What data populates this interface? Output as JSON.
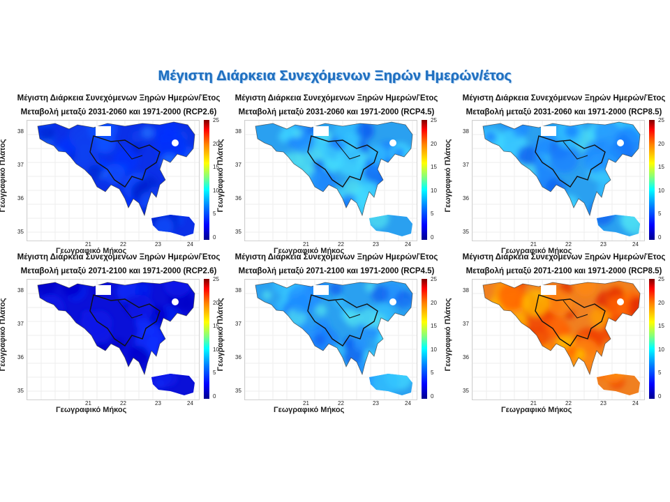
{
  "slide_title": "Μέγιστη Διάρκεια Συνεχόμενων Ξηρών Ημερών/έτος",
  "panel_title_line1": "Μέγιστη Διάρκεια Συνεχόμενων Ξηρών Ημερών/Έτος",
  "x_axis_label": "Γεωγραφικό Μήκος",
  "y_axis_label": "Γεωγραφικό Πλάτος",
  "x_ticks": [
    "21",
    "22",
    "23",
    "24"
  ],
  "y_ticks": [
    "38",
    "37",
    "36",
    "35"
  ],
  "colorbar_ticks": [
    "25",
    "20",
    "15",
    "10",
    "5",
    "0"
  ],
  "panels": [
    {
      "line2": "Μεταβολή μεταξύ 2031-2060 και 1971-2000 (RCP2.6)",
      "scheme": "low"
    },
    {
      "line2": "Μεταβολή μεταξύ 2031-2060 και 1971-2000 (RCP4.5)",
      "scheme": "mid"
    },
    {
      "line2": "Μεταβολή μεταξύ 2031-2060 και 1971-2000 (RCP8.5)",
      "scheme": "mid"
    },
    {
      "line2": "Μεταβολή μεταξύ 2071-2100 και 1971-2000 (RCP2.6)",
      "scheme": "verylow"
    },
    {
      "line2": "Μεταβολή μεταξύ 2071-2100 και 1971-2000 (RCP4.5)",
      "scheme": "mid"
    },
    {
      "line2": "Μεταβολή μεταξύ 2071-2100 και 1971-2000 (RCP8.5)",
      "scheme": "high"
    }
  ]
}
